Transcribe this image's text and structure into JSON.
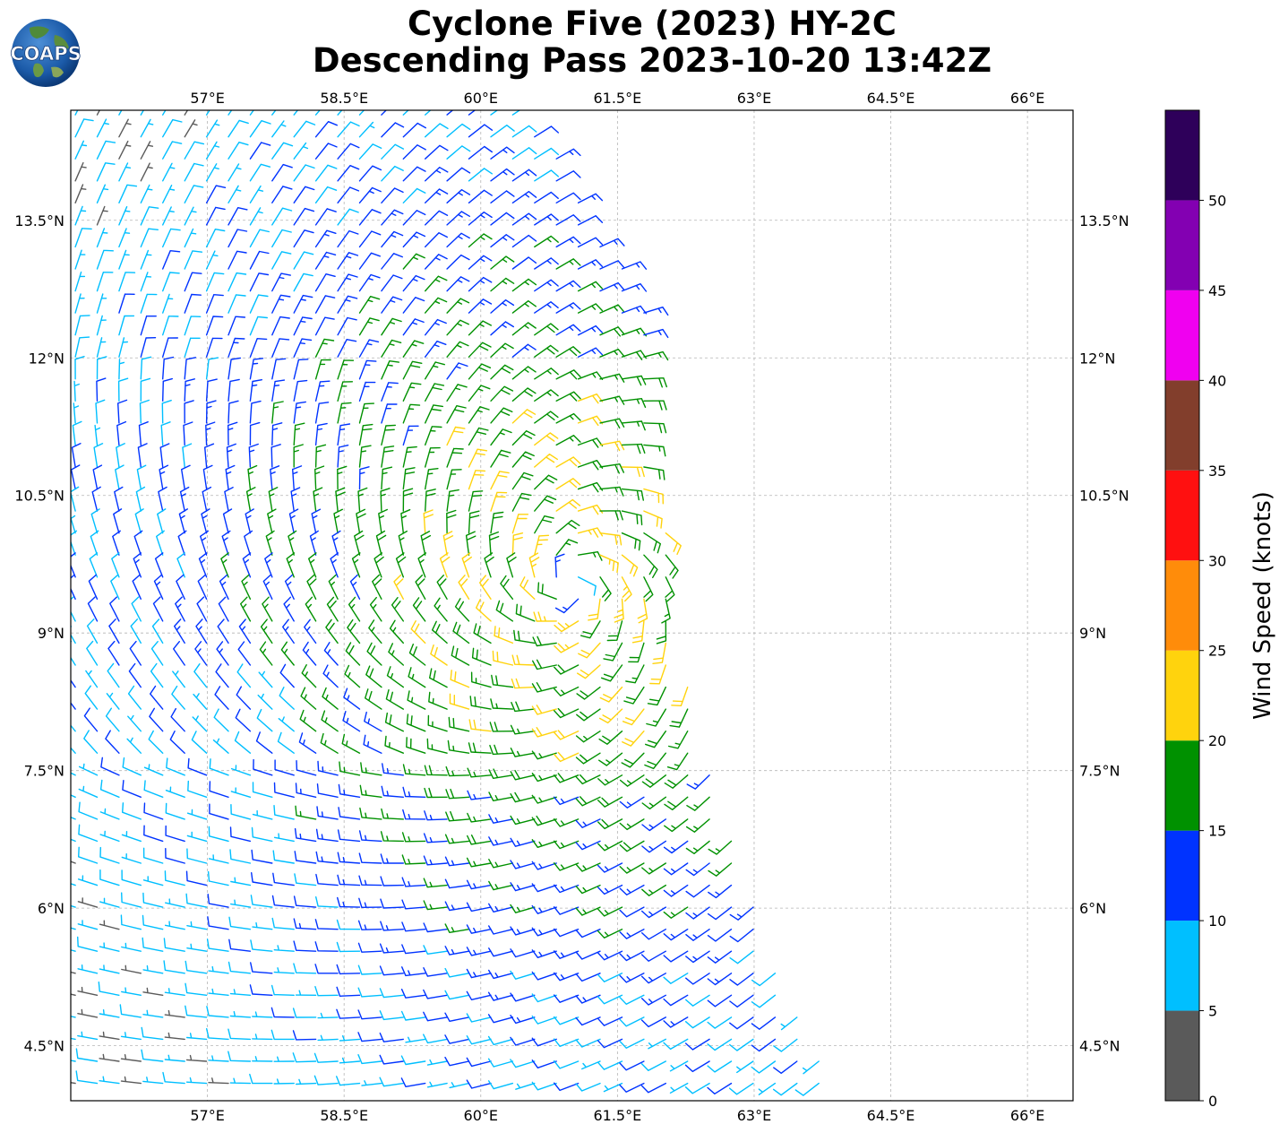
{
  "title": {
    "line1": "Cyclone Five (2023) HY-2C",
    "line2": "Descending Pass 2023-10-20 13:42Z"
  },
  "logo": {
    "text": "COAPS"
  },
  "map": {
    "lon_range": [
      55.5,
      66.5
    ],
    "lat_range": [
      3.9,
      14.7
    ],
    "lon_ticks": [
      57,
      58.5,
      60,
      61.5,
      63,
      64.5,
      66
    ],
    "lat_ticks": [
      4.5,
      6,
      7.5,
      9,
      10.5,
      12,
      13.5
    ],
    "lon_tick_labels": [
      "57°E",
      "58.5°E",
      "60°E",
      "61.5°E",
      "63°E",
      "64.5°E",
      "66°E"
    ],
    "lat_tick_labels": [
      "4.5°N",
      "6°N",
      "7.5°N",
      "9°N",
      "10.5°N",
      "12°N",
      "13.5°N"
    ],
    "grid": true,
    "cyclone_center": [
      61.0,
      9.55
    ],
    "swath_east_edge": [
      [
        60.5,
        14.7
      ],
      [
        61.9,
        12.5
      ],
      [
        62.1,
        9.0
      ],
      [
        63.0,
        6.0
      ],
      [
        63.9,
        3.9
      ]
    ]
  },
  "colorbar": {
    "label": "Wind Speed (knots)",
    "tick_values": [
      0,
      5,
      10,
      15,
      20,
      25,
      30,
      35,
      40,
      45,
      50
    ],
    "tick_labels": [
      "0",
      "5",
      "10",
      "15",
      "20",
      "25",
      "30",
      "35",
      "40",
      "45",
      "50"
    ],
    "range": [
      0,
      55
    ],
    "bins": [
      {
        "min": 0,
        "max": 5,
        "color": "#5a5a5a"
      },
      {
        "min": 5,
        "max": 10,
        "color": "#00bfff"
      },
      {
        "min": 10,
        "max": 15,
        "color": "#0033ff"
      },
      {
        "min": 15,
        "max": 20,
        "color": "#009100"
      },
      {
        "min": 20,
        "max": 25,
        "color": "#ffd30d"
      },
      {
        "min": 25,
        "max": 30,
        "color": "#ff8c0a"
      },
      {
        "min": 30,
        "max": 35,
        "color": "#ff1010"
      },
      {
        "min": 35,
        "max": 40,
        "color": "#823e2c"
      },
      {
        "min": 40,
        "max": 45,
        "color": "#f000f0"
      },
      {
        "min": 45,
        "max": 50,
        "color": "#8300b2"
      },
      {
        "min": 50,
        "max": 55,
        "color": "#2e005a"
      }
    ]
  },
  "colors": {
    "frame": "#000000",
    "grid": "#b5b5b5"
  }
}
